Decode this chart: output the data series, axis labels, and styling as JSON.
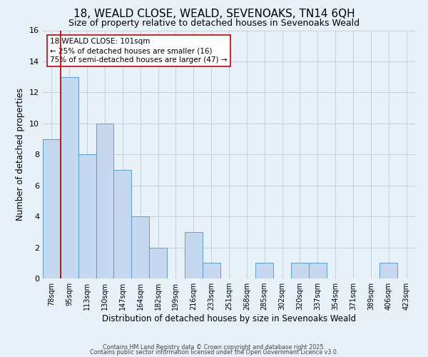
{
  "title": "18, WEALD CLOSE, WEALD, SEVENOAKS, TN14 6QH",
  "subtitle": "Size of property relative to detached houses in Sevenoaks Weald",
  "xlabel": "Distribution of detached houses by size in Sevenoaks Weald",
  "ylabel": "Number of detached properties",
  "bin_labels": [
    "78sqm",
    "95sqm",
    "113sqm",
    "130sqm",
    "147sqm",
    "164sqm",
    "182sqm",
    "199sqm",
    "216sqm",
    "233sqm",
    "251sqm",
    "268sqm",
    "285sqm",
    "302sqm",
    "320sqm",
    "337sqm",
    "354sqm",
    "371sqm",
    "389sqm",
    "406sqm",
    "423sqm"
  ],
  "bar_values": [
    9,
    13,
    8,
    10,
    7,
    4,
    2,
    0,
    3,
    1,
    0,
    0,
    1,
    0,
    1,
    1,
    0,
    0,
    0,
    1,
    0
  ],
  "bar_color": "#c5d8f0",
  "bar_edge_color": "#5a9fd4",
  "background_color": "#e8f0f8",
  "grid_color": "#c0cfe0",
  "red_line_bin_index": 1,
  "annotation_title": "18 WEALD CLOSE: 101sqm",
  "annotation_line1": "← 25% of detached houses are smaller (16)",
  "annotation_line2": "75% of semi-detached houses are larger (47) →",
  "annotation_box_color": "#ffffff",
  "annotation_box_edge": "#cc0000",
  "footer1": "Contains HM Land Registry data © Crown copyright and database right 2025.",
  "footer2": "Contains public sector information licensed under the Open Government Licence v3.0.",
  "ylim": [
    0,
    16
  ],
  "yticks": [
    0,
    2,
    4,
    6,
    8,
    10,
    12,
    14,
    16
  ],
  "title_fontsize": 11,
  "subtitle_fontsize": 9,
  "annotation_fontsize": 7.5,
  "xlabel_fontsize": 8.5,
  "ylabel_fontsize": 8.5,
  "tick_fontsize": 7,
  "ytick_fontsize": 8,
  "footer_fontsize": 5.8
}
